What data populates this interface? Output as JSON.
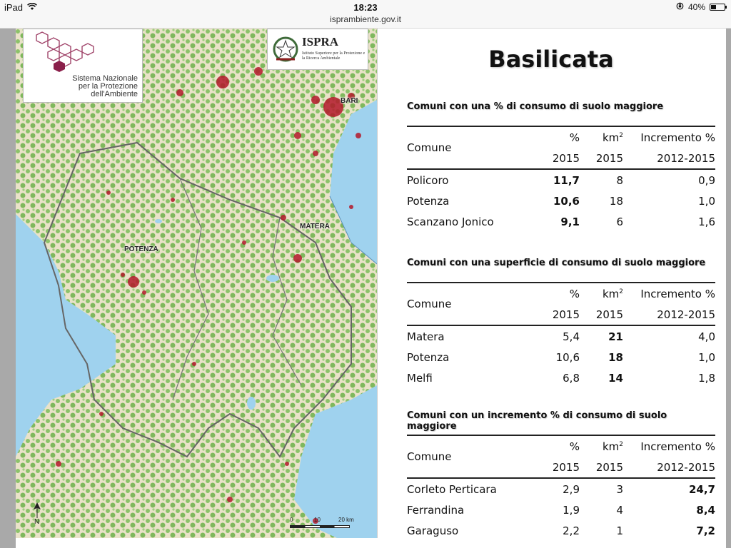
{
  "status_bar": {
    "device": "iPad",
    "time": "18:23",
    "url": "isprambiente.gov.it",
    "battery": "40%",
    "battery_level": 0.4
  },
  "map": {
    "logo_snpa": [
      "Sistema Nazionale",
      "per la Protezione",
      "dell'Ambiente"
    ],
    "logo_ispra": {
      "name": "ISPRA",
      "subtitle": "Istituto Superiore per la Protezione e la Ricerca Ambientale"
    },
    "cities": [
      {
        "label": "BARI"
      },
      {
        "label": "MATERA"
      },
      {
        "label": "POTENZA"
      }
    ],
    "scale_labels": [
      "0",
      "10",
      "20 km"
    ],
    "north_label": "N"
  },
  "slide": {
    "title": "Basilicata",
    "tables": [
      {
        "heading": "Comuni con una % di consumo di suolo maggiore",
        "headers": {
          "col1": "Comune",
          "col2": "%",
          "col3_base": "km",
          "col3_sup": "2",
          "col4": "Incremento %",
          "col2_year": "2015",
          "col3_year": "2015",
          "col4_years": "2012-2015"
        },
        "rows": [
          {
            "comune": "Policoro",
            "pct": "11,7",
            "km2": "8",
            "inc": "0,9"
          },
          {
            "comune": "Potenza",
            "pct": "10,6",
            "km2": "18",
            "inc": "1,0"
          },
          {
            "comune": "Scanzano Jonico",
            "pct": "9,1",
            "km2": "6",
            "inc": "1,6"
          }
        ]
      },
      {
        "heading": "Comuni con una superficie di consumo di suolo maggiore",
        "headers": {
          "col1": "Comune",
          "col2": "%",
          "col3_base": "km",
          "col3_sup": "2",
          "col4": "Incremento %",
          "col2_year": "2015",
          "col3_year": "2015",
          "col4_years": "2012-2015"
        },
        "rows": [
          {
            "comune": "Matera",
            "pct": "5,4",
            "km2": "21",
            "inc": "4,0"
          },
          {
            "comune": "Potenza",
            "pct": "10,6",
            "km2": "18",
            "inc": "1,0"
          },
          {
            "comune": "Melfi",
            "pct": "6,8",
            "km2": "14",
            "inc": "1,8"
          }
        ]
      },
      {
        "heading": "Comuni con un incremento % di consumo di suolo maggiore",
        "headers": {
          "col1": "Comune",
          "col2": "%",
          "col3_base": "km",
          "col3_sup": "2",
          "col4": "Incremento %",
          "col2_year": "2015",
          "col3_year": "2015",
          "col4_years": "2012-2015"
        },
        "rows": [
          {
            "comune": "Corleto Perticara",
            "pct": "2,9",
            "km2": "3",
            "inc": "24,7"
          },
          {
            "comune": "Ferrandina",
            "pct": "1,9",
            "km2": "4",
            "inc": "8,4"
          },
          {
            "comune": "Garaguso",
            "pct": "2,2",
            "km2": "1",
            "inc": "7,2"
          }
        ]
      }
    ]
  }
}
